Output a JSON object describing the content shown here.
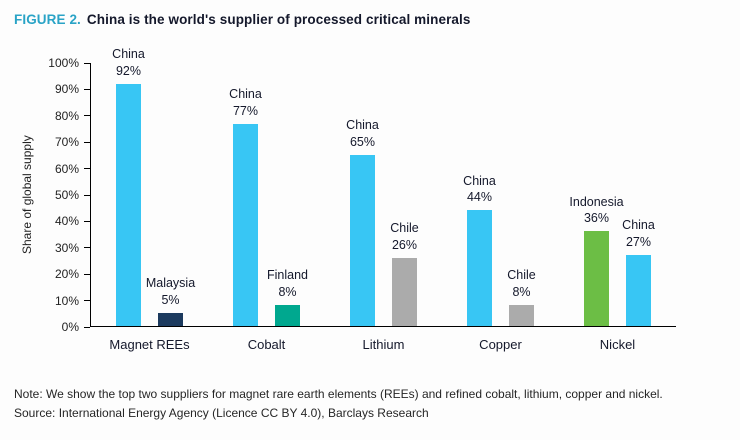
{
  "figure": {
    "label": "FIGURE 2.",
    "title": "China is the world's supplier of processed critical minerals"
  },
  "chart_data": {
    "type": "bar",
    "title": "China is the world's supplier of processed critical minerals",
    "ylabel": "Share of global supply",
    "ylim": [
      0,
      100
    ],
    "yticks": [
      0,
      10,
      20,
      30,
      40,
      50,
      60,
      70,
      80,
      90,
      100
    ],
    "ytick_suffix": "%",
    "grid": false,
    "legend": false,
    "categories": [
      "Magnet REEs",
      "Cobalt",
      "Lithium",
      "Copper",
      "Nickel"
    ],
    "colors": {
      "china_blue": "#38c6f4",
      "malaysia_navy": "#1c3a5e",
      "finland_teal": "#00a88f",
      "chile_gray": "#ababab",
      "indonesia_green": "#6cbe45"
    },
    "groups": [
      {
        "category": "Magnet REEs",
        "bars": [
          {
            "label": "China",
            "value": 92,
            "color": "china_blue"
          },
          {
            "label": "Malaysia",
            "value": 5,
            "color": "malaysia_navy"
          }
        ]
      },
      {
        "category": "Cobalt",
        "bars": [
          {
            "label": "China",
            "value": 77,
            "color": "china_blue"
          },
          {
            "label": "Finland",
            "value": 8,
            "color": "finland_teal"
          }
        ]
      },
      {
        "category": "Lithium",
        "bars": [
          {
            "label": "China",
            "value": 65,
            "color": "china_blue"
          },
          {
            "label": "Chile",
            "value": 26,
            "color": "chile_gray"
          }
        ]
      },
      {
        "category": "Copper",
        "bars": [
          {
            "label": "China",
            "value": 44,
            "color": "china_blue"
          },
          {
            "label": "Chile",
            "value": 8,
            "color": "chile_gray"
          }
        ]
      },
      {
        "category": "Nickel",
        "bars": [
          {
            "label": "Indonesia",
            "value": 36,
            "color": "indonesia_green"
          },
          {
            "label": "China",
            "value": 27,
            "color": "china_blue"
          }
        ]
      }
    ]
  },
  "footer": {
    "note": "Note: We show the top two suppliers for magnet rare earth elements (REEs) and refined cobalt, lithium, copper and nickel.",
    "source": "Source: International Energy Agency (Licence CC BY 4.0), Barclays Research"
  },
  "accent_color": "#29a3c6"
}
